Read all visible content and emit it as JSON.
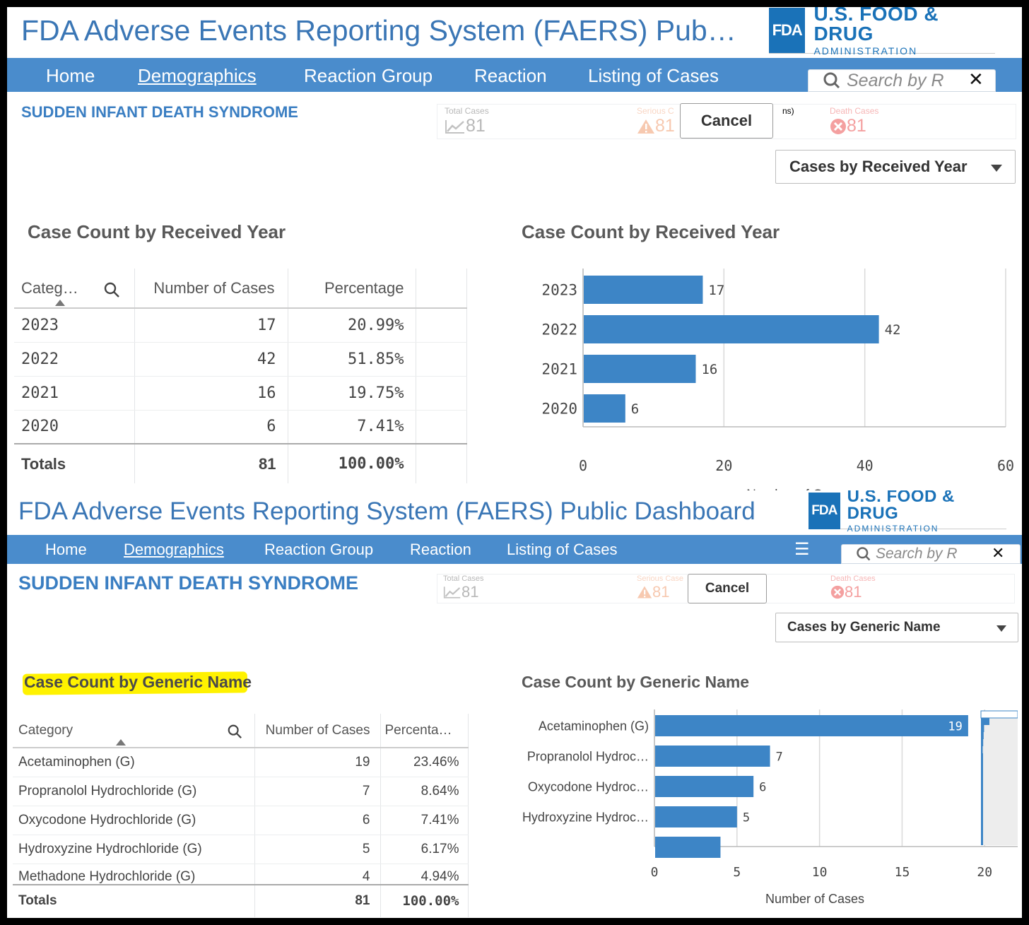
{
  "top": {
    "app_title": "FDA Adverse Events Reporting System (FAERS) Pub…",
    "logo": {
      "mark": "FDA",
      "line1": "U.S. FOOD & DRUG",
      "line2": "ADMINISTRATION"
    },
    "nav": [
      "Home",
      "Demographics",
      "Reaction Group",
      "Reaction",
      "Listing of Cases"
    ],
    "search_placeholder": "Search by R",
    "section_title": "SUDDEN INFANT DEATH SYNDROME",
    "kpis": {
      "total_label": "Total Cases",
      "total_value": "81",
      "serious_label": "Serious C",
      "serious_value": "81",
      "serious_tail": "ns)",
      "death_label": "Death Cases",
      "death_value": "81"
    },
    "cancel_label": "Cancel",
    "dropdown_label": "Cases by Received Year",
    "table_title": "Case Count by Received Year",
    "table": {
      "headers": [
        "Categ…",
        "Number of Cases",
        "Percentage"
      ],
      "rows": [
        [
          "2023",
          "17",
          "20.99%"
        ],
        [
          "2022",
          "42",
          "51.85%"
        ],
        [
          "2021",
          "16",
          "19.75%"
        ],
        [
          "2020",
          "6",
          "7.41%"
        ]
      ],
      "totals": [
        "Totals",
        "81",
        "100.00%"
      ]
    },
    "chart_title": "Case Count by Received Year"
  },
  "bottom": {
    "app_title": "FDA Adverse Events Reporting System (FAERS) Public Dashboard",
    "logo": {
      "mark": "FDA",
      "line1": "U.S. FOOD & DRUG",
      "line2": "ADMINISTRATION"
    },
    "nav": [
      "Home",
      "Demographics",
      "Reaction Group",
      "Reaction",
      "Listing of Cases"
    ],
    "search_placeholder": "Search by R",
    "section_title": "SUDDEN INFANT DEATH SYNDROME",
    "kpis": {
      "total_label": "Total Cases",
      "total_value": "81",
      "serious_label": "Serious Case",
      "serious_value": "81",
      "death_label": "Death Cases",
      "death_value": "81"
    },
    "cancel_label": "Cancel",
    "dropdown_label": "Cases by Generic Name",
    "table_title": "Case Count by Generic Name",
    "table": {
      "headers": [
        "Category",
        "Number of Cases",
        "Percenta…"
      ],
      "rows": [
        [
          "Acetaminophen (G)",
          "19",
          "23.46%"
        ],
        [
          "Propranolol Hydrochloride (G)",
          "7",
          "8.64%"
        ],
        [
          "Oxycodone Hydrochloride (G)",
          "6",
          "7.41%"
        ],
        [
          "Hydroxyzine Hydrochloride (G)",
          "5",
          "6.17%"
        ],
        [
          "Methadone Hydrochloride (G)",
          "4",
          "4.94%"
        ]
      ],
      "totals": [
        "Totals",
        "81",
        "100.00%"
      ]
    },
    "chart_title": "Case Count by Generic Name"
  },
  "colors": {
    "nav_blue": "#4a8ccc",
    "bar_blue": "#3d85c6",
    "fda_blue": "#1a72b8",
    "title_blue": "#3a7ec2",
    "highlight": "#fff200"
  },
  "icons": [
    "search-icon",
    "close-icon",
    "trend-icon",
    "warning-icon",
    "death-icon",
    "sort-asc-icon",
    "chevron-down-icon",
    "hamburger-icon"
  ],
  "chart_data": [
    {
      "type": "bar",
      "orientation": "horizontal",
      "title": "Case Count by Received Year",
      "categories": [
        "2023",
        "2022",
        "2021",
        "2020"
      ],
      "values": [
        17,
        42,
        16,
        6
      ],
      "xlabel": "Number of Cases",
      "xlim": [
        0,
        60
      ],
      "xticks": [
        0,
        20,
        40,
        60
      ],
      "grid": true
    },
    {
      "type": "bar",
      "orientation": "horizontal",
      "title": "Case Count by Generic Name",
      "categories": [
        "Acetaminophen (G)",
        "Propranolol Hydroc…",
        "Oxycodone Hydroc…",
        "Hydroxyzine Hydroc…",
        ""
      ],
      "values": [
        19,
        7,
        6,
        5,
        4
      ],
      "value_labels": [
        "19",
        "7",
        "6",
        "5",
        ""
      ],
      "xlabel": "Number of Cases",
      "xlim": [
        0,
        22
      ],
      "xticks": [
        0,
        5,
        10,
        15,
        20
      ],
      "grid": true
    }
  ]
}
